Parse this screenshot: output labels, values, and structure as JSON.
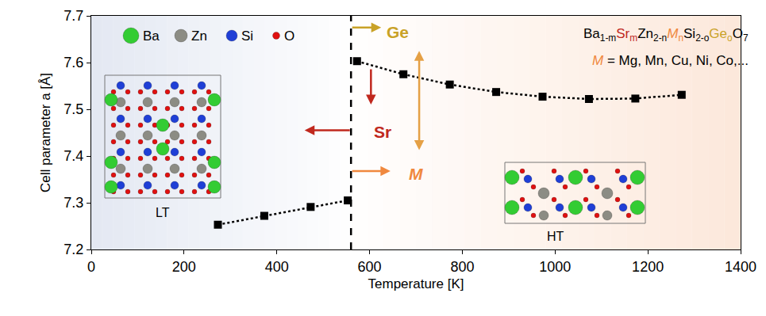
{
  "chart_data": {
    "type": "line",
    "x_label": "Temperature [K]",
    "y_label": "Cell parameter a [Å]",
    "xlim": [
      0,
      1400
    ],
    "xticks": [
      0,
      200,
      400,
      600,
      800,
      1000,
      1200,
      1400
    ],
    "ylim": [
      7.2,
      7.7
    ],
    "yticks": [
      7.2,
      7.3,
      7.4,
      7.5,
      7.6,
      7.7
    ],
    "grid": false,
    "series": [
      {
        "x": [
          273,
          373,
          473,
          553
        ],
        "values": [
          7.253,
          7.272,
          7.291,
          7.305
        ],
        "color": "#000000",
        "marker": "square",
        "line_style": "dotted"
      },
      {
        "x": [
          573,
          673,
          773,
          873,
          973,
          1073,
          1173,
          1273
        ],
        "values": [
          7.603,
          7.575,
          7.553,
          7.537,
          7.527,
          7.522,
          7.523,
          7.531
        ],
        "color": "#000000",
        "marker": "square",
        "line_style": "dotted"
      }
    ],
    "vline": {
      "x": 560,
      "line_style": "dashed"
    },
    "atoms": [
      {
        "name": "Ba",
        "color": "#33cc33"
      },
      {
        "name": "Zn",
        "color": "#8c8c84"
      },
      {
        "name": "Si",
        "color": "#1f3fd6"
      },
      {
        "name": "O",
        "color": "#e01010"
      }
    ],
    "formula": [
      {
        "text": "Ba"
      },
      {
        "text": "1-m",
        "sub": true
      },
      {
        "text": "Sr",
        "color": "#c0281e"
      },
      {
        "text": "m",
        "sub": true,
        "color": "#c0281e"
      },
      {
        "text": "Zn"
      },
      {
        "text": "2-n",
        "sub": true
      },
      {
        "text": "M",
        "color": "#f0883e",
        "italic": true
      },
      {
        "text": "n",
        "sub": true,
        "color": "#f0883e"
      },
      {
        "text": "Si"
      },
      {
        "text": "2-o",
        "sub": true
      },
      {
        "text": "Ge",
        "color": "#c9a227"
      },
      {
        "text": "o",
        "sub": true,
        "color": "#c9a227"
      },
      {
        "text": "O"
      },
      {
        "text": "7",
        "sub": true
      }
    ],
    "formula_note": [
      {
        "text": "M",
        "color": "#f0883e",
        "italic": true
      },
      {
        "text": " = Mg, Mn, Cu, Ni, Co,..."
      }
    ],
    "labels": {
      "ge": {
        "text": "Ge",
        "color": "#c9a227"
      },
      "sr": {
        "text": "Sr",
        "color": "#c0281e"
      },
      "m": {
        "text": "M",
        "color": "#f0883e"
      },
      "lt": {
        "text": "LT"
      },
      "ht": {
        "text": "HT"
      }
    }
  }
}
